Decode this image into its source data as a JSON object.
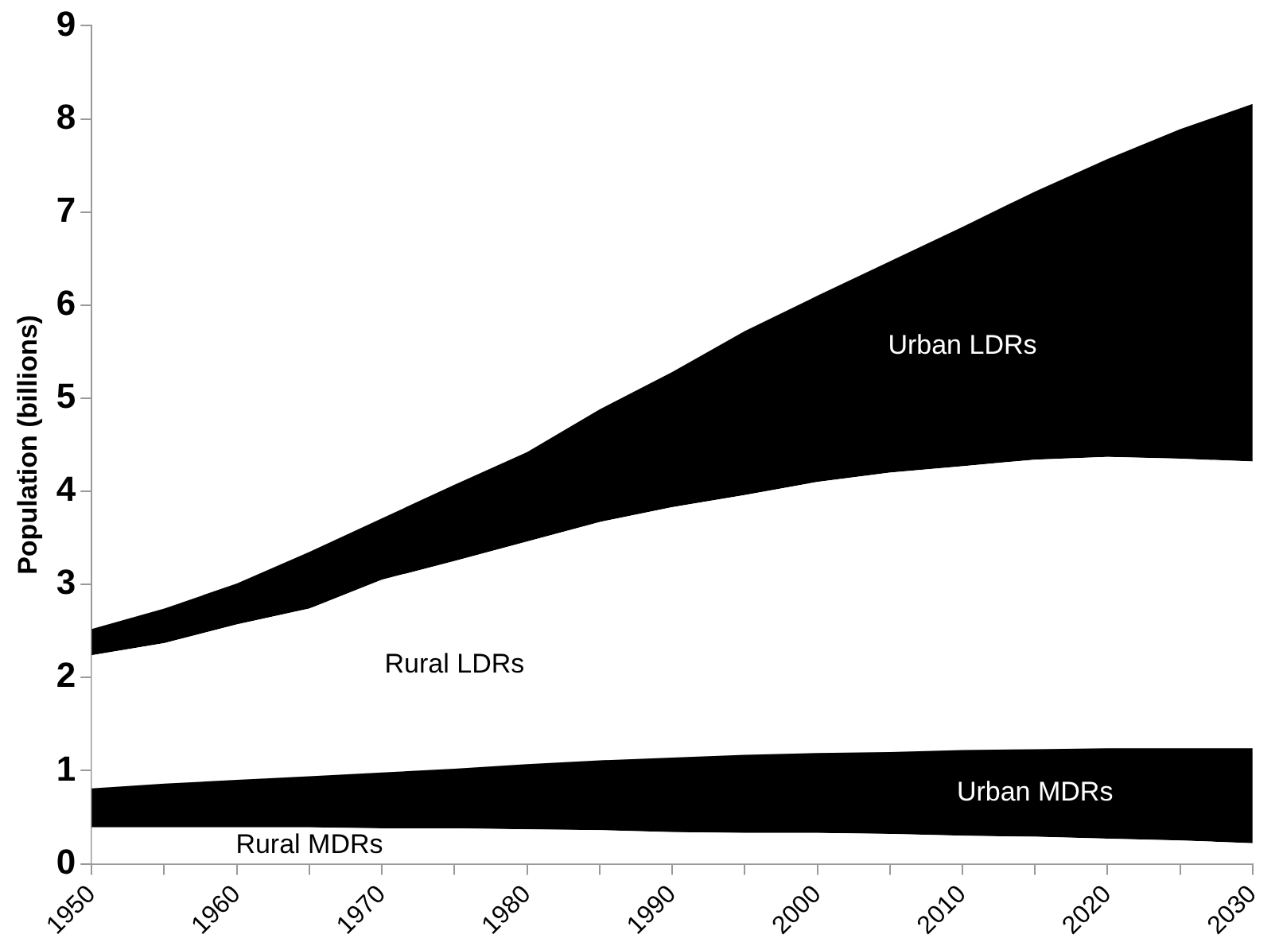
{
  "chart_data": {
    "type": "area",
    "stacked": true,
    "ylabel": "Population (billions)",
    "x": [
      1950,
      1955,
      1960,
      1965,
      1970,
      1975,
      1980,
      1985,
      1990,
      1995,
      2000,
      2005,
      2010,
      2015,
      2020,
      2025,
      2030
    ],
    "xlim": [
      1950,
      2030
    ],
    "xticks": [
      1950,
      {
        "value": 1955,
        "label": null
      },
      1960,
      {
        "value": 1965,
        "label": null
      },
      1970,
      {
        "value": 1975,
        "label": null
      },
      1980,
      {
        "value": 1985,
        "label": null
      },
      1990,
      {
        "value": 1995,
        "label": null
      },
      2000,
      {
        "value": 2005,
        "label": null
      },
      2010,
      {
        "value": 2015,
        "label": null
      },
      2020,
      {
        "value": 2025,
        "label": null
      },
      2030
    ],
    "ylim": [
      0,
      9
    ],
    "yticks": [
      0,
      1,
      2,
      3,
      4,
      5,
      6,
      7,
      8,
      9
    ],
    "grid": false,
    "legend": false,
    "series": [
      {
        "name": "Rural MDRs",
        "color": "#ffffff",
        "values": [
          0.39,
          0.39,
          0.39,
          0.39,
          0.38,
          0.38,
          0.37,
          0.36,
          0.34,
          0.33,
          0.33,
          0.32,
          0.3,
          0.29,
          0.27,
          0.25,
          0.22
        ]
      },
      {
        "name": "Urban MDRs",
        "color": "#000000",
        "values": [
          0.42,
          0.47,
          0.51,
          0.55,
          0.6,
          0.64,
          0.7,
          0.75,
          0.8,
          0.84,
          0.86,
          0.88,
          0.92,
          0.94,
          0.97,
          0.99,
          1.02
        ]
      },
      {
        "name": "Rural LDRs",
        "color": "#ffffff",
        "values": [
          1.43,
          1.51,
          1.67,
          1.8,
          2.07,
          2.23,
          2.39,
          2.56,
          2.69,
          2.79,
          2.91,
          3.0,
          3.05,
          3.11,
          3.13,
          3.11,
          3.08
        ]
      },
      {
        "name": "Urban LDRs",
        "color": "#000000",
        "values": [
          0.28,
          0.37,
          0.44,
          0.61,
          0.66,
          0.82,
          0.96,
          1.21,
          1.45,
          1.76,
          2.0,
          2.27,
          2.57,
          2.88,
          3.2,
          3.54,
          3.84
        ]
      }
    ]
  }
}
